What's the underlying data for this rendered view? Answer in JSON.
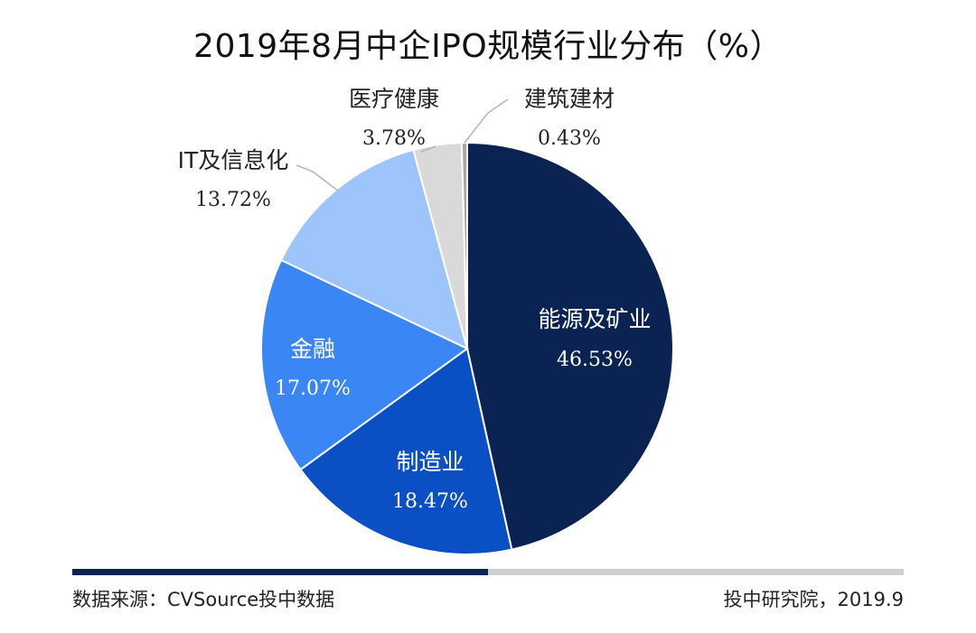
{
  "title": "2019年8月中企IPO规模行业分布（%）",
  "chart_data": {
    "type": "pie",
    "title": "2019年8月中企IPO规模行业分布（%）",
    "slices": [
      {
        "label": "能源及矿业",
        "value": 46.53,
        "display": "46.53%",
        "color": "#0b2352",
        "label_color": "#ffffff"
      },
      {
        "label": "制造业",
        "value": 18.47,
        "display": "18.47%",
        "color": "#0a4fc4",
        "label_color": "#ffffff"
      },
      {
        "label": "金融",
        "value": 17.07,
        "display": "17.07%",
        "color": "#3a86f5",
        "label_color": "#ffffff"
      },
      {
        "label": "IT及信息化",
        "value": 13.72,
        "display": "13.72%",
        "color": "#9ec5fb",
        "label_color": "#222222"
      },
      {
        "label": "医疗健康",
        "value": 3.78,
        "display": "3.78%",
        "color": "#d9d9d9",
        "label_color": "#222222"
      },
      {
        "label": "建筑建材",
        "value": 0.43,
        "display": "0.43%",
        "color": "#a6a6a6",
        "label_color": "#222222"
      }
    ],
    "start_angle_deg": 0,
    "direction": "clockwise"
  },
  "footer": {
    "source": "数据来源：CVSource投中数据",
    "credit": "投中研究院，2019.9"
  },
  "colors": {
    "bar_dark": "#0b2352",
    "bar_light": "#cfcfcf"
  }
}
